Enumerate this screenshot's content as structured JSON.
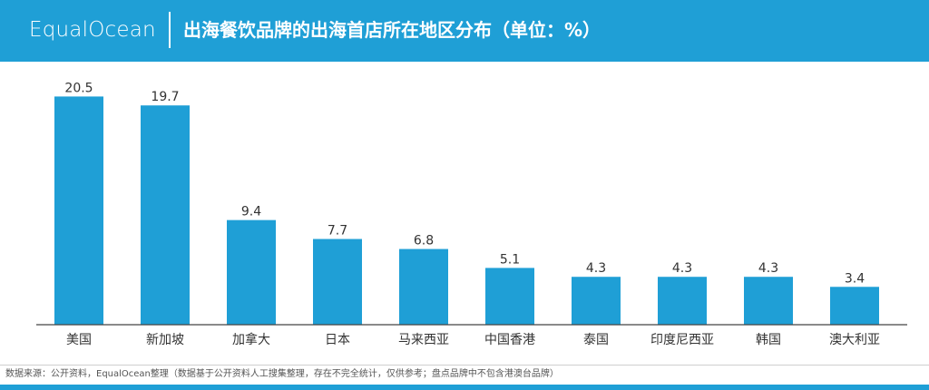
{
  "header": {
    "brand": "EqualOcean",
    "title": "出海餐饮品牌的出海首店所在地区分布（单位：%）"
  },
  "footer": {
    "source": "数据来源：公开资料，EqualOcean整理（数据基于公开资料人工搜集整理，存在不完全统计，仅供参考；盘点品牌中不包含港澳台品牌）"
  },
  "colors": {
    "accent": "#1f9fd6",
    "bar": "#1f9fd6"
  },
  "chart_data": {
    "type": "bar",
    "categories": [
      "美国",
      "新加坡",
      "加拿大",
      "日本",
      "马来西亚",
      "中国香港",
      "泰国",
      "印度尼西亚",
      "韩国",
      "澳大利亚"
    ],
    "values": [
      20.5,
      19.7,
      9.4,
      7.7,
      6.8,
      5.1,
      4.3,
      4.3,
      4.3,
      3.4
    ],
    "data_labels": [
      "20.5",
      "19.7",
      "9.4",
      "7.7",
      "6.8",
      "5.1",
      "4.3",
      "4.3",
      "4.3",
      "3.4"
    ],
    "ylim": [
      0,
      22
    ],
    "grid": false,
    "legend": "none"
  }
}
